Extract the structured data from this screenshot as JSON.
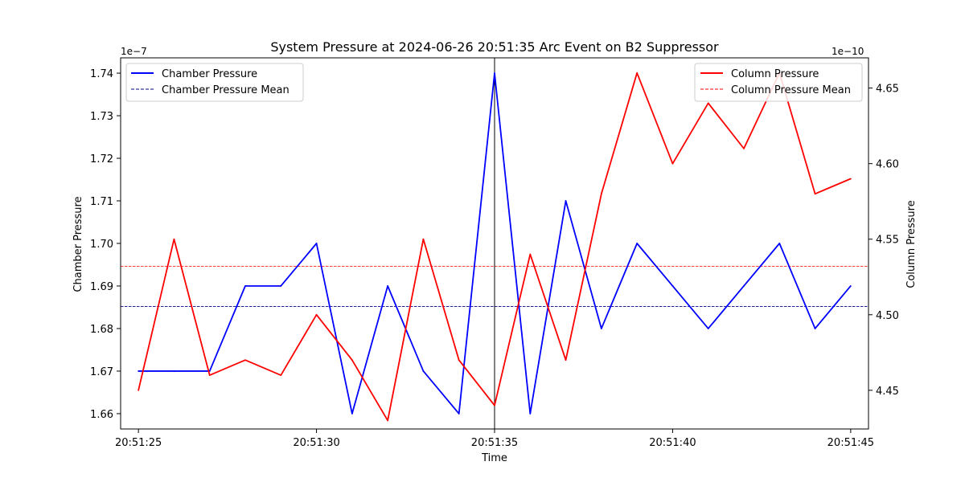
{
  "chart_data": {
    "type": "line",
    "title": "System Pressure at 2024-06-26 20:51:35 Arc Event on B2 Suppressor",
    "xlabel": "Time",
    "ylabel_left": "Chamber Pressure",
    "ylabel_right": "Column Pressure",
    "left_scale_label": "1e−7",
    "right_scale_label": "1e−10",
    "x": [
      "20:51:25",
      "20:51:26",
      "20:51:27",
      "20:51:28",
      "20:51:29",
      "20:51:30",
      "20:51:31",
      "20:51:32",
      "20:51:33",
      "20:51:34",
      "20:51:35",
      "20:51:36",
      "20:51:37",
      "20:51:38",
      "20:51:39",
      "20:51:40",
      "20:51:41",
      "20:51:42",
      "20:51:43",
      "20:51:44",
      "20:51:45"
    ],
    "x_ticks": [
      "20:51:25",
      "20:51:30",
      "20:51:35",
      "20:51:40",
      "20:51:45"
    ],
    "event_time": "20:51:35",
    "left_axis": {
      "ylim": [
        1.6564,
        1.7436
      ],
      "ticks": [
        "1.66",
        "1.67",
        "1.68",
        "1.69",
        "1.70",
        "1.71",
        "1.72",
        "1.73",
        "1.74"
      ]
    },
    "right_axis": {
      "ylim": [
        4.4244,
        4.67
      ],
      "ticks": [
        "4.45",
        "4.50",
        "4.55",
        "4.60",
        "4.65"
      ]
    },
    "series": [
      {
        "name": "Chamber Pressure",
        "axis": "left",
        "color": "#0000ff",
        "style": "solid",
        "values": [
          1.67,
          1.67,
          1.67,
          1.69,
          1.69,
          1.7,
          1.66,
          1.69,
          1.67,
          1.66,
          1.74,
          1.66,
          1.71,
          1.68,
          1.7,
          1.69,
          1.68,
          1.69,
          1.7,
          1.68,
          1.69
        ]
      },
      {
        "name": "Column Pressure",
        "axis": "right",
        "color": "#ff0000",
        "style": "solid",
        "values": [
          4.45,
          4.55,
          4.46,
          4.47,
          4.46,
          4.5,
          4.47,
          4.43,
          4.55,
          4.47,
          4.44,
          4.54,
          4.47,
          4.58,
          4.66,
          4.6,
          4.64,
          4.61,
          4.66,
          4.58,
          4.59
        ]
      }
    ],
    "mean_lines": [
      {
        "name": "Chamber Pressure Mean",
        "axis": "left",
        "value": 1.6852,
        "color": "#00008b",
        "style": "dashed"
      },
      {
        "name": "Column Pressure Mean",
        "axis": "right",
        "value": 4.532,
        "color": "#ff0000",
        "style": "dashed"
      }
    ],
    "legend_left_placement": "upper-left",
    "legend_right_placement": "upper-right",
    "grid": false
  }
}
